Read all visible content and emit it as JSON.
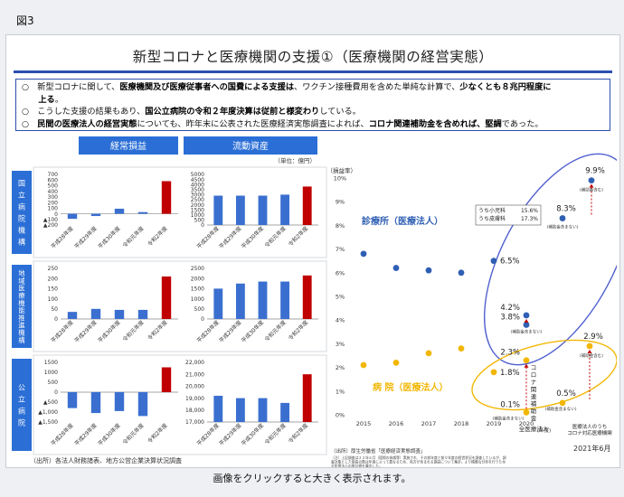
{
  "figure_label": "図3",
  "title": "新型コロナと医療機関の支援①（医療機関の経営実態）",
  "bullets": [
    {
      "marker": "○",
      "segments": [
        {
          "t": "新型コロナに関して、"
        },
        {
          "t": "医療機関及び医療従事者への国費による支援は",
          "b": true
        },
        {
          "t": "、ワクチン接種費用を含めた単純な計算で、"
        },
        {
          "t": "少なくとも８兆円程度に",
          "b": true
        }
      ]
    },
    {
      "marker": "",
      "segments": [
        {
          "t": "上る",
          "b": true
        },
        {
          "t": "。"
        }
      ]
    },
    {
      "marker": "○",
      "segments": [
        {
          "t": "こうした支援の結果もあり、"
        },
        {
          "t": "国公立病院の令和２年度決算は従前と様変わり",
          "b": true
        },
        {
          "t": "している。"
        }
      ]
    },
    {
      "marker": "○",
      "segments": [
        {
          "t": "民間の医療法人の経営実態",
          "b": true
        },
        {
          "t": "についても、昨年末に公表された医療経済実態調査によれば、"
        },
        {
          "t": "コロナ関連補助金を含めれば、堅調",
          "b": true
        },
        {
          "t": "であった。"
        }
      ]
    }
  ],
  "left_panel": {
    "headers": [
      "経常損益",
      "流動資産"
    ],
    "unit": "（単位：億円）",
    "categories": [
      "平成28年度",
      "平成29年度",
      "平成30年度",
      "令和元年度",
      "令和2年度"
    ],
    "rows": [
      {
        "name": "国立病院機構",
        "charts": [
          {
            "type": "bar",
            "ticks": [
              "700",
              "600",
              "500",
              "400",
              "300",
              "200",
              "100",
              "0",
              "▲100",
              "▲200"
            ],
            "ylim": [
              -200,
              700
            ],
            "values": [
              -90,
              -40,
              90,
              30,
              580
            ]
          },
          {
            "type": "bar",
            "ticks": [
              "5000",
              "4500",
              "4000",
              "3500",
              "3000",
              "2500",
              "2000",
              "1500",
              "1000",
              "500",
              "0"
            ],
            "ylim": [
              0,
              5000
            ],
            "values": [
              2900,
              2900,
              2900,
              3000,
              3800
            ]
          }
        ]
      },
      {
        "name": "地域医療機能推進機構",
        "charts": [
          {
            "type": "bar",
            "ticks": [
              "250",
              "200",
              "150",
              "100",
              "50",
              "0"
            ],
            "ylim": [
              0,
              250
            ],
            "values": [
              35,
              50,
              45,
              45,
              210
            ]
          },
          {
            "type": "bar",
            "ticks": [
              "2500",
              "2000",
              "1500",
              "1000",
              "500",
              "0"
            ],
            "ylim": [
              0,
              2500
            ],
            "values": [
              1500,
              1750,
              1850,
              1850,
              2150
            ]
          }
        ]
      },
      {
        "name": "公立病院",
        "charts": [
          {
            "type": "bar",
            "ticks": [
              "1500",
              "1000",
              "500",
              "0",
              "▲500",
              "▲1,000",
              "▲1,500"
            ],
            "ylim": [
              -1500,
              1500
            ],
            "values": [
              -800,
              -1050,
              -950,
              -1200,
              1250
            ]
          },
          {
            "type": "bar",
            "ticks": [
              "22,000",
              "21,000",
              "20,000",
              "19,000",
              "18,000",
              "17,000"
            ],
            "ylim": [
              17000,
              22000
            ],
            "values": [
              19200,
              19000,
              19000,
              18600,
              21000
            ]
          }
        ]
      }
    ],
    "source": "（出所）各法人財務諸表、地方公営企業決算状況調査"
  },
  "chart_data": {
    "type": "scatter",
    "ylabel": "（損益率）",
    "ylim": [
      0,
      10
    ],
    "yticks": [
      "0%",
      "1%",
      "2%",
      "3%",
      "4%",
      "5%",
      "6%",
      "7%",
      "8%",
      "9%",
      "10%"
    ],
    "x_labels": [
      "2015",
      "2016",
      "2017",
      "2018",
      "2019",
      "2020",
      "2021年6月"
    ],
    "x_unit": "(年度)",
    "series": [
      {
        "name": "診療所（医療法人）",
        "color": "#2f5fb3",
        "points": [
          {
            "x": "2015",
            "y": 6.8
          },
          {
            "x": "2016",
            "y": 6.2
          },
          {
            "x": "2017",
            "y": 6.1
          },
          {
            "x": "2018",
            "y": 6.0
          },
          {
            "x": "2019",
            "y": 6.5,
            "label": "6.5%"
          },
          {
            "x": "2020",
            "y": 4.2,
            "label": "4.2%"
          },
          {
            "x": "2020",
            "y": 3.8,
            "label": "3.8%"
          },
          {
            "x": "2021",
            "y": 8.3,
            "label": "8.3%"
          },
          {
            "x": "2021",
            "y": 9.9,
            "label": "9.9%"
          }
        ]
      },
      {
        "name": "病 院（医療法人）",
        "color": "#f2b705",
        "points": [
          {
            "x": "2015",
            "y": 2.1
          },
          {
            "x": "2016",
            "y": 2.2
          },
          {
            "x": "2017",
            "y": 2.6
          },
          {
            "x": "2018",
            "y": 2.8
          },
          {
            "x": "2019",
            "y": 1.8,
            "label": "1.8%"
          },
          {
            "x": "2020",
            "y": 2.3,
            "label": "2.3%"
          },
          {
            "x": "2020",
            "y": 0.1,
            "label": "0.1%"
          },
          {
            "x": "2021",
            "y": 0.5,
            "label": "0.5%"
          },
          {
            "x": "2021",
            "y": 2.9,
            "label": "2.9%"
          }
        ]
      }
    ],
    "legend_box": [
      {
        "label": "うち小児科",
        "value": "15.6%"
      },
      {
        "label": "うち皮膚科",
        "value": "17.3%"
      }
    ],
    "annotations": {
      "subsidy_excl": "(補助金含まない)",
      "subsidy_incl": "(補助金含む)",
      "covid_bar": "コロナ関連補助金",
      "all_hospitals": "全医療法人",
      "covid_hospitals": "医療法人のうち\nコロナ対応医療機関"
    },
    "source_title": "（出所）厚生労働省「医療経済実態調査」",
    "notes": [
      "（注）上記調査は２２年６月（国際の脅威等）実施され、その前年度と前々年度の経営状況を調査しているが、調",
      "査対象とした施設の数は年度によって異なるため、両方が含まれる施設について集計。より精緻な分析を行うため",
      "全医療法人の推計値を算出した。",
      "2020年度は新型コロナの影響により病院の経営が悪化したが、コロナ関連補助金を含めると平均0.5％の黒字。2021年度はコロナ",
      "関連補助金等を合わせた収支が前年に比べ好転、医療法人全体として見ると前年並みの利益を確保している。"
    ]
  },
  "caption": "画像をクリックすると大きく表示されます。"
}
